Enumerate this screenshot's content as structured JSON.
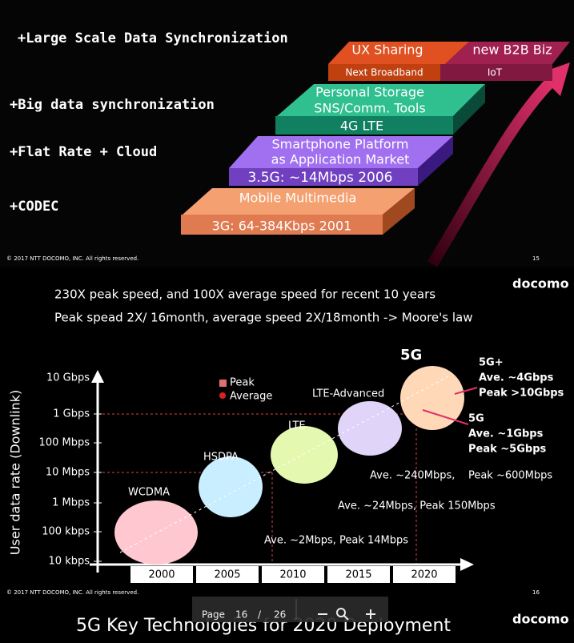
{
  "slide1": {
    "features": [
      "+Large Scale Data Synchronization",
      "+Big data synchronization",
      "+Flat Rate + Cloud",
      "+CODEC"
    ],
    "layers": [
      {
        "top": "Mobile Multimedia",
        "front": "3G: 64-384Kbps 2001"
      },
      {
        "top": [
          "Smartphone Platform",
          "as Application Market"
        ],
        "front": "3.5G: ~14Mbps 2006"
      },
      {
        "top": [
          "Personal Storage",
          "SNS/Comm. Tools"
        ],
        "front": "4G LTE"
      }
    ],
    "top_left": "UX Sharing",
    "top_right": "new B2B Biz",
    "front_left": "Next Broadband",
    "front_right": "IoT",
    "copyright": "© 2017  NTT DOCOMO, INC. All rights reserved.",
    "page": 15
  },
  "slide2": {
    "logo": "docomo",
    "headline": [
      "230X peak speed, and 100X average speed for recent 10 years",
      "Peak spead 2X/ 16month,  average speed 2X/18month -> Moore's law"
    ],
    "y_axis_label": "User data rate (Downlink)",
    "y_ticks": [
      "10 Gbps",
      "1 Gbps",
      "100 Mbps",
      "10 Mbps",
      "1 Mbps",
      "100 kbps",
      "10 kbps"
    ],
    "x_ticks": [
      "2000",
      "2005",
      "2010",
      "2015",
      "2020"
    ],
    "legend": [
      "Peak",
      "Average"
    ],
    "bubbles": [
      "WCDMA",
      "HSDPA",
      "LTE",
      "LTE-Advanced",
      "5G"
    ],
    "annotations": [
      "Ave. ~2Mbps, Peak 14Mbps",
      "Ave. ~24Mbps, Peak 150Mbps",
      "Ave. ~240Mbps,    Peak ~600Mbps"
    ],
    "callout_5g_plus": [
      "5G+",
      "Ave. ~4Gbps",
      "Peak >10Gbps"
    ],
    "callout_5g": [
      "5G",
      "Ave. ~1Gbps",
      "Peak ~5Gbps"
    ],
    "copyright": "© 2017  NTT DOCOMO, INC. All rights reserved.",
    "page": 16
  },
  "toolbar": {
    "page_label": "Page",
    "current": 16,
    "separator": "/",
    "total": 26
  },
  "slide3": {
    "title": "5G Key Technologies for 2020 Deployment",
    "logo": "docomo"
  }
}
